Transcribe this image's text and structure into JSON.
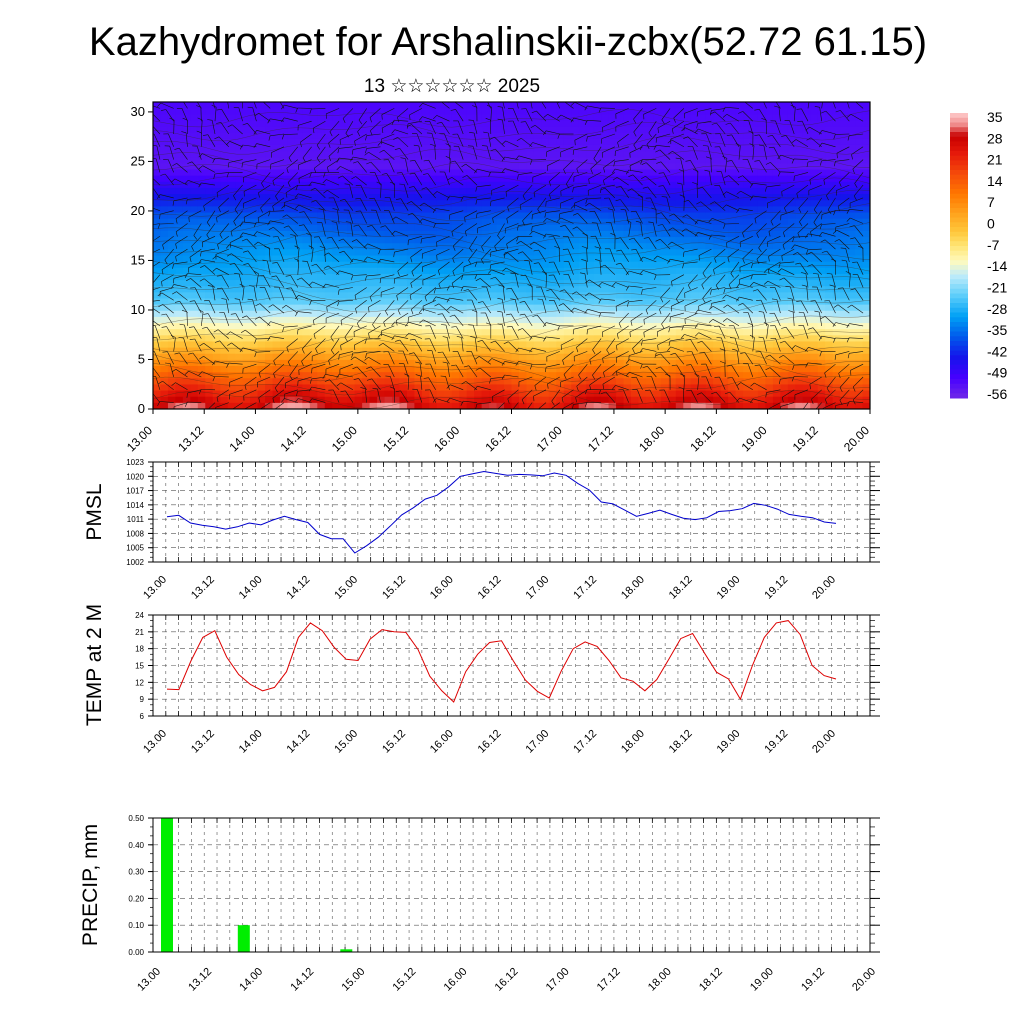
{
  "title": "Kazhydromet for Arshalinskii-zcbx(52.72 61.15)",
  "subtitle": "13 ☆☆☆☆☆☆ 2025",
  "time_ticks": [
    "13.00",
    "13.12",
    "14.00",
    "14.12",
    "15.00",
    "15.12",
    "16.00",
    "16.12",
    "17.00",
    "17.12",
    "18.00",
    "18.12",
    "19.00",
    "19.12",
    "20.00"
  ],
  "colorbar": {
    "labels": [
      "35",
      "28",
      "21",
      "14",
      "7",
      "0",
      "-7",
      "-14",
      "-21",
      "-28",
      "-35",
      "-42",
      "-49",
      "-56"
    ]
  },
  "chart_data": [
    {
      "type": "heatmap",
      "name": "cross-section",
      "x_ticks": [
        "13.00",
        "13.12",
        "14.00",
        "14.12",
        "15.00",
        "15.12",
        "16.00",
        "16.12",
        "17.00",
        "17.12",
        "18.00",
        "18.12",
        "19.00",
        "19.12",
        "20.00"
      ],
      "y_ticks": [
        "0",
        "5",
        "10",
        "15",
        "20",
        "25",
        "30"
      ],
      "ylim": [
        0,
        31
      ],
      "zlim": [
        -60,
        38
      ]
    },
    {
      "type": "line",
      "ylabel": "PMSL",
      "ylim": [
        1002,
        1023
      ],
      "y_ticks": [
        "1002",
        "1005",
        "1008",
        "1011",
        "1014",
        "1017",
        "1020",
        "1023"
      ],
      "color": "#0000cc",
      "values": [
        1011.5,
        1011.8,
        1010.2,
        1009.7,
        1009.4,
        1008.9,
        1009.4,
        1010.2,
        1009.8,
        1010.8,
        1011.6,
        1010.9,
        1010.3,
        1007.8,
        1006.9,
        1006.9,
        1003.9,
        1005.4,
        1007.2,
        1009.5,
        1011.9,
        1013.4,
        1015.2,
        1016.0,
        1017.8,
        1020.0,
        1020.5,
        1021.0,
        1020.6,
        1020.2,
        1020.4,
        1020.3,
        1020.1,
        1020.7,
        1020.2,
        1018.5,
        1017.1,
        1014.6,
        1014.2,
        1012.9,
        1011.6,
        1012.2,
        1012.9,
        1012.0,
        1011.2,
        1010.9,
        1011.3,
        1012.6,
        1012.8,
        1013.2,
        1014.3,
        1013.9,
        1013.1,
        1012.0,
        1011.6,
        1011.3,
        1010.4,
        1010.1
      ]
    },
    {
      "type": "line",
      "ylabel": "TEMP at 2 M",
      "ylim": [
        6,
        24
      ],
      "y_ticks": [
        "6",
        "9",
        "12",
        "15",
        "18",
        "21",
        "24"
      ],
      "color": "#dd0000",
      "values": [
        10.8,
        10.7,
        15.8,
        20.0,
        21.2,
        16.5,
        13.4,
        11.6,
        10.5,
        11.1,
        13.9,
        20.0,
        22.6,
        21.2,
        18.2,
        16.1,
        15.9,
        19.7,
        21.4,
        21.0,
        20.9,
        17.9,
        13.1,
        10.5,
        8.5,
        13.9,
        17.0,
        19.1,
        19.4,
        15.8,
        12.4,
        10.4,
        9.2,
        14.0,
        18.0,
        19.2,
        18.4,
        15.9,
        12.8,
        12.2,
        10.5,
        12.5,
        16.1,
        19.8,
        20.7,
        17.2,
        13.8,
        12.6,
        9.0,
        15.0,
        20.0,
        22.6,
        23.0,
        20.5,
        15.0,
        13.2,
        12.6
      ]
    },
    {
      "type": "bar",
      "ylabel": "PRECIP, mm",
      "ylim": [
        0,
        0.5
      ],
      "y_ticks": [
        "0.00",
        "0.10",
        "0.20",
        "0.30",
        "0.40",
        "0.50"
      ],
      "color": "#00ee00",
      "bars": [
        {
          "index": 0,
          "value": 0.5
        },
        {
          "index": 6,
          "value": 0.1
        },
        {
          "index": 14,
          "value": 0.01
        }
      ]
    }
  ]
}
